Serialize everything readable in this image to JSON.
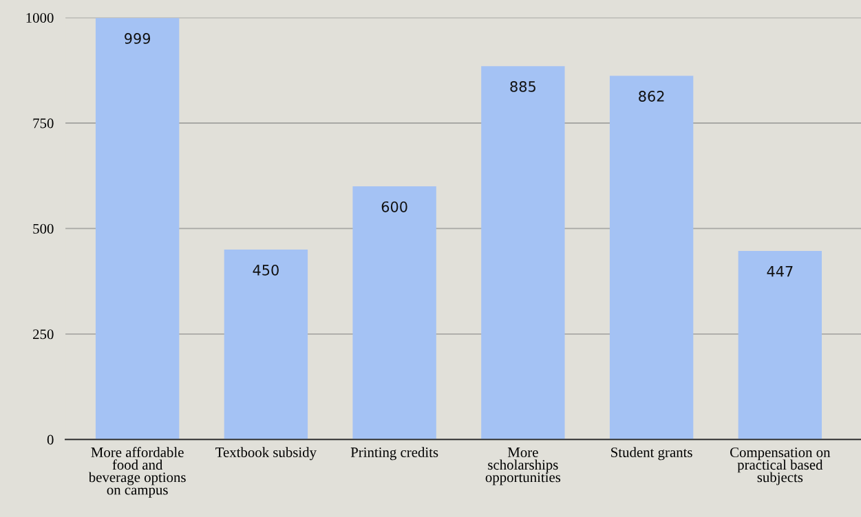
{
  "chart_data": {
    "type": "bar",
    "categories": [
      "More affordable\nfood and\nbeverage options\non campus",
      "Textbook subsidy",
      "Printing credits",
      "More\nscholarships\nopportunities",
      "Student grants",
      "Compensation on\npractical based\nsubjects"
    ],
    "values": [
      999,
      450,
      600,
      885,
      862,
      447
    ],
    "color": "#a4c2f4",
    "ylim": [
      0,
      1000
    ],
    "yticks": [
      0,
      250,
      500,
      750,
      1000
    ],
    "grid": "y",
    "data_labels": true
  }
}
